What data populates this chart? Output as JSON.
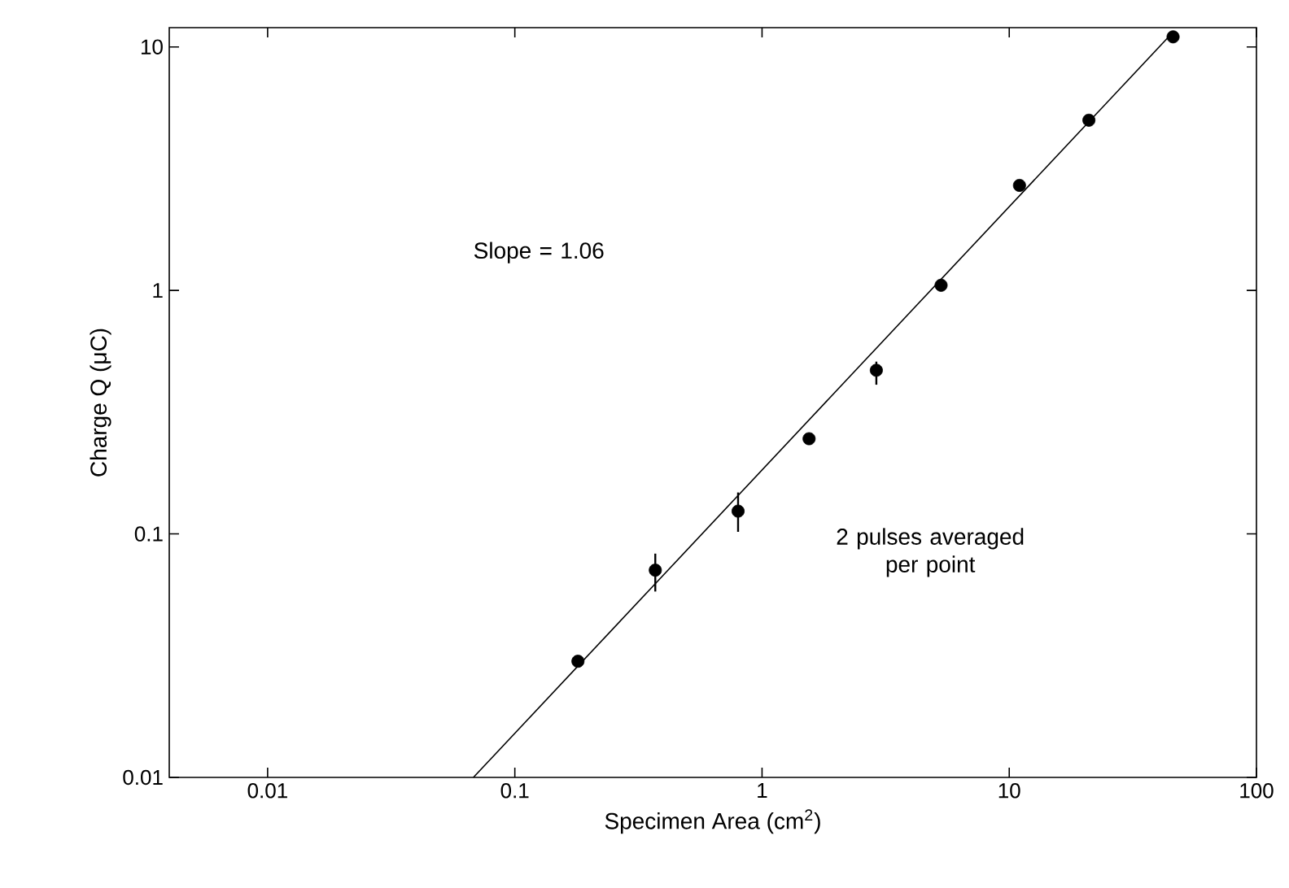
{
  "chart_data": {
    "type": "scatter",
    "xlabel": "Specimen Area (cm$^{2}$)",
    "ylabel": "Charge Q (μC)",
    "log": "xy",
    "xlim": [
      0.004,
      100
    ],
    "ylim": [
      0.01,
      12
    ],
    "xticks": [
      0.01,
      0.1,
      1,
      10,
      100
    ],
    "yticks": [
      0.01,
      0.1,
      1,
      10
    ],
    "annotations": [
      "Slope = 1.06",
      "2 pulses averaged per point"
    ],
    "series": [
      {
        "type": "scatter",
        "color": "#000000",
        "x": [
          0.18,
          0.37,
          0.8,
          1.55,
          2.9,
          5.3,
          11,
          21,
          46
        ],
        "values": [
          0.03,
          0.071,
          0.124,
          0.246,
          0.47,
          1.05,
          2.7,
          5.0,
          11
        ],
        "errors": [
          null,
          [
            0.058,
            0.083
          ],
          [
            0.102,
            0.148
          ],
          null,
          [
            0.41,
            0.51
          ],
          null,
          null,
          null,
          null
        ]
      },
      {
        "type": "line",
        "color": "#000000",
        "line_style": "solid",
        "x": [
          0.068,
          46
        ],
        "values": [
          0.01,
          11.5
        ]
      }
    ]
  }
}
